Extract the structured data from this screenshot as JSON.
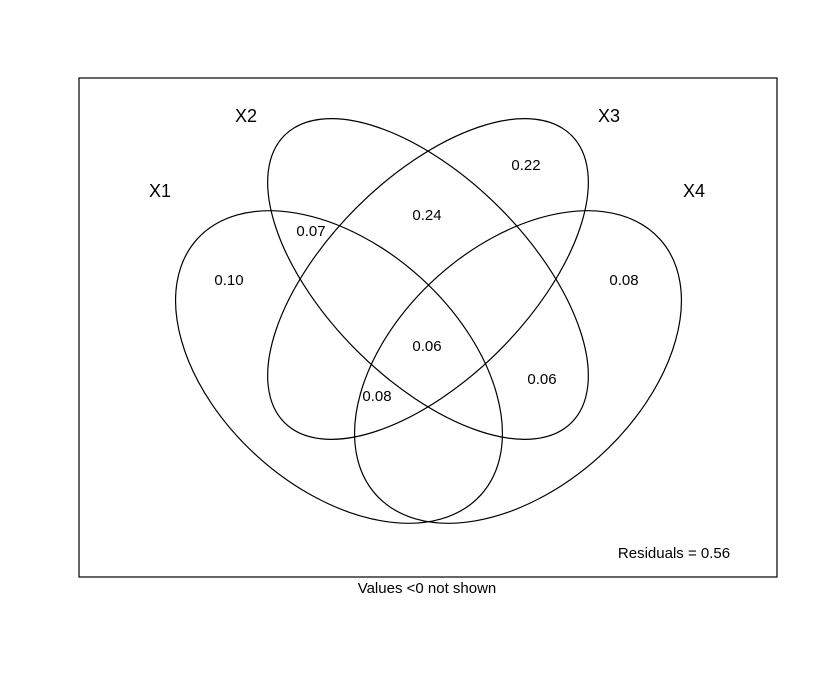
{
  "chart_data": {
    "type": "venn",
    "sets": [
      {
        "label": "X1"
      },
      {
        "label": "X2"
      },
      {
        "label": "X3"
      },
      {
        "label": "X4"
      }
    ],
    "regions": [
      {
        "sets": [
          "X1"
        ],
        "value": "0.10"
      },
      {
        "sets": [
          "X1",
          "X2"
        ],
        "value": "0.07"
      },
      {
        "sets": [
          "X2",
          "X3"
        ],
        "value": "0.24"
      },
      {
        "sets": [
          "X3"
        ],
        "value": "0.22"
      },
      {
        "sets": [
          "X4"
        ],
        "value": "0.08"
      },
      {
        "sets": [
          "X1",
          "X2",
          "X3",
          "X4"
        ],
        "value": "0.06"
      },
      {
        "sets": [
          "X2",
          "X3",
          "X4"
        ],
        "value": "0.06"
      },
      {
        "sets": [
          "X1",
          "X2",
          "X4"
        ],
        "value": "0.08"
      }
    ],
    "residuals_text": "Residuals = 0.56",
    "footnote": "Values <0 not shown"
  }
}
